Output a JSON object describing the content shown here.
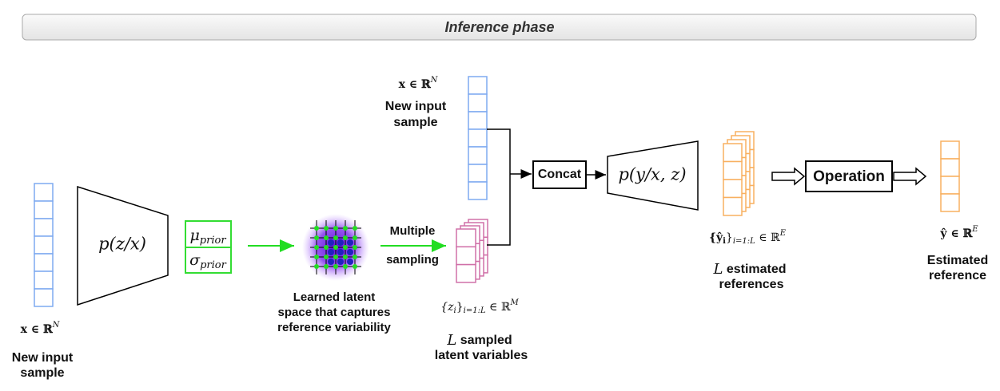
{
  "header": {
    "title": "Inference phase"
  },
  "inputs": [
    {
      "math": {
        "base": "x ∈ ℝ",
        "sup": "N"
      },
      "label": [
        "New input",
        "sample"
      ]
    },
    {
      "math": {
        "base": "x ∈ ℝ",
        "sup": "N"
      },
      "label": [
        "New input",
        "sample"
      ]
    }
  ],
  "encoder": {
    "label": "p(z/x)"
  },
  "prior": {
    "mu": {
      "base": "μ",
      "sub": "prior"
    },
    "sigma": {
      "base": "σ",
      "sub": "prior"
    }
  },
  "latent_space": {
    "label": [
      "Learned latent",
      "space that captures",
      "reference variability"
    ]
  },
  "sampling": {
    "label": [
      "Multiple",
      "sampling"
    ]
  },
  "sampled": {
    "math": {
      "open": "{z",
      "sub": "i",
      "close": "}",
      "range": "i=1:L",
      "space": " ∈ ℝ",
      "sup": "M"
    },
    "label": {
      "var": "L",
      "text": " sampled",
      "line2": "latent variables"
    }
  },
  "concat": {
    "label": "Concat"
  },
  "decoder": {
    "label": "p(y/x, z)"
  },
  "estimates": {
    "math": {
      "open": "{ŷ",
      "sub": "i",
      "close": "}",
      "range": "i=1:L",
      "space": " ∈ ℝ",
      "sup": "E"
    },
    "label": {
      "var": "L",
      "text": " estimated",
      "line2": "references"
    }
  },
  "operation": {
    "label": "Operation"
  },
  "output": {
    "math": {
      "base": "ŷ ∈ ℝ",
      "sup": "E"
    },
    "label": [
      "Estimated",
      "reference"
    ]
  }
}
